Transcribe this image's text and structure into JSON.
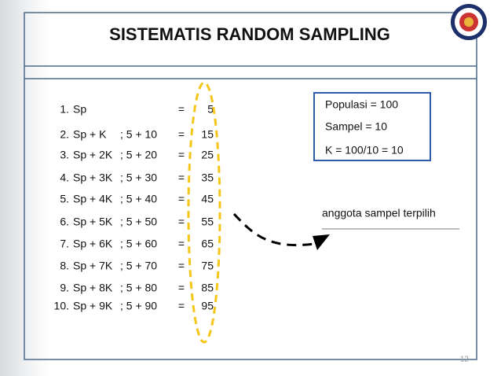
{
  "header": {
    "title": "SISTEMATIS RANDOM SAMPLING"
  },
  "rows": [
    {
      "num": "1.",
      "expr": "Sp",
      "eq": "=",
      "result": "5"
    },
    {
      "num": "2.",
      "expr": "Sp + K",
      "calc": "; 5 + 10",
      "eq": "=",
      "result": "15"
    },
    {
      "num": "3.",
      "expr": "Sp + 2K",
      "calc": "; 5 + 20",
      "eq": "=",
      "result": "25"
    },
    {
      "num": "4.",
      "expr": "Sp + 3K",
      "calc": "; 5 + 30",
      "eq": "=",
      "result": "35"
    },
    {
      "num": "5.",
      "expr": "Sp + 4K",
      "calc": "; 5 + 40",
      "eq": "=",
      "result": "45"
    },
    {
      "num": "6.",
      "expr": "Sp + 5K",
      "calc": "; 5 + 50",
      "eq": "=",
      "result": "55"
    },
    {
      "num": "7.",
      "expr": "Sp + 6K",
      "calc": "; 5 + 60",
      "eq": "=",
      "result": "65"
    },
    {
      "num": "8.",
      "expr": "Sp + 7K",
      "calc": "; 5 + 70",
      "eq": "=",
      "result": "75"
    },
    {
      "num": "9.",
      "expr": "Sp + 8K",
      "calc": "; 5 + 80",
      "eq": "=",
      "result": "85"
    },
    {
      "num": "10.",
      "expr": "Sp + 9K",
      "calc": "; 5 + 90",
      "eq": "=",
      "result": "95"
    }
  ],
  "info_box": [
    "Populasi  = 100",
    "Sampel  =  10",
    "K  =  100/10 = 10"
  ],
  "annotation": "anggota sampel terpilih",
  "page_number": "12"
}
